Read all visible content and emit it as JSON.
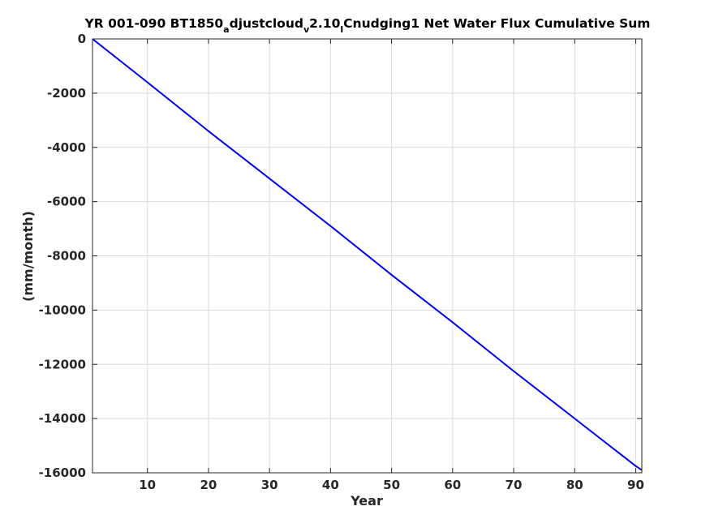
{
  "chart_data": {
    "type": "line",
    "title_parts": [
      {
        "text": "YR 001-090 BT1850",
        "sub": false
      },
      {
        "text": "a",
        "sub": true
      },
      {
        "text": "djustcloud",
        "sub": false
      },
      {
        "text": "v",
        "sub": true
      },
      {
        "text": "2.10",
        "sub": false
      },
      {
        "text": "l",
        "sub": true
      },
      {
        "text": "Cnudging1 Net Water Flux Cumulative Sum",
        "sub": false
      }
    ],
    "xlabel": "Year",
    "ylabel": "(mm/month)",
    "xlim": [
      1,
      91
    ],
    "ylim": [
      -16000,
      0
    ],
    "xticks": [
      10,
      20,
      30,
      40,
      50,
      60,
      70,
      80,
      90
    ],
    "yticks": [
      0,
      -2000,
      -4000,
      -6000,
      -8000,
      -10000,
      -12000,
      -14000,
      -16000
    ],
    "grid": true,
    "series": [
      {
        "color": "#0000ff",
        "x": [
          1,
          10,
          20,
          30,
          40,
          50,
          60,
          70,
          80,
          90,
          91
        ],
        "y": [
          0,
          -1600,
          -3400,
          -5150,
          -6900,
          -8700,
          -10450,
          -12250,
          -14000,
          -15750,
          -15900
        ]
      }
    ]
  }
}
